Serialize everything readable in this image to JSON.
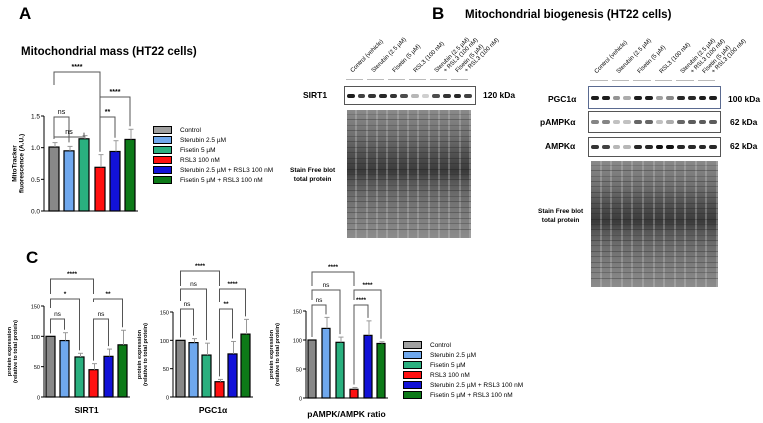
{
  "colors": {
    "control": "#808080",
    "sterubin": "#6fa8ee",
    "fisetin": "#2ab07f",
    "rsl3": "#ff1010",
    "sterubin_rsl3": "#1212d8",
    "fisetin_rsl3": "#0d7a18"
  },
  "panel_a": {
    "letter": "A",
    "title": "Mitochondrial mass (HT22 cells)"
  },
  "panel_b": {
    "letter": "B",
    "title": "Mitochondrial biogenesis (HT22 cells)",
    "lanes": [
      "Control (vehicle)",
      "Sterubin (2.5 µM)",
      "Fisetin (5 µM)",
      "RSL3 (100 nM)",
      "Sterubin (2.5 µM)",
      "+ RSL3 (100 nM)",
      "Fisetin (5 µM)",
      "+ RSL3 (100 nM)"
    ],
    "left_blot": {
      "protein": "SIRT1",
      "kda": "120 kDa",
      "stain_label_1": "Stain Free blot",
      "stain_label_2": "total protein"
    },
    "right_blot": {
      "rows": [
        {
          "protein": "PGC1α",
          "kda": "100 kDa"
        },
        {
          "protein": "pAMPKα",
          "kda": "62 kDa"
        },
        {
          "protein": "AMPKα",
          "kda": "62 kDa"
        }
      ],
      "stain_label_1": "Stain Free blot",
      "stain_label_2": "total protein"
    }
  },
  "panel_c": {
    "letter": "C"
  },
  "legend": [
    {
      "label": "Control",
      "color": "#a0a0a0"
    },
    {
      "label": "Sterubin 2.5 µM",
      "color": "#6fa8ee"
    },
    {
      "label": "Fisetin 5 µM",
      "color": "#2ab07f"
    },
    {
      "label": "RSL3 100 nM",
      "color": "#ff1010"
    },
    {
      "label": "Sterubin 2.5 µM + RSL3 100 nM",
      "color": "#1212d8"
    },
    {
      "label": "Fisetin 5 µM + RSL3 100 nM",
      "color": "#0d7a18"
    }
  ],
  "chart_data": [
    {
      "type": "bar",
      "title": "Mitochondrial mass (HT22 cells)",
      "xlabel": "",
      "ylabel": "MitoTracker fluorescence (A.U.)",
      "ylim": [
        0,
        1.5
      ],
      "yticks": [
        "0.0",
        "0.5",
        "1.0",
        "1.5"
      ],
      "categories": [
        "Control",
        "Sterubin 2.5 µM",
        "Fisetin 5 µM",
        "RSL3 100 nM",
        "Sterubin 2.5 µM + RSL3 100 nM",
        "Fisetin 5 µM + RSL3 100 nM"
      ],
      "values": [
        1.01,
        0.95,
        1.14,
        0.69,
        0.94,
        1.13
      ],
      "errors": [
        0.07,
        0.07,
        0.05,
        0.2,
        0.17,
        0.16
      ],
      "significance": [
        {
          "from": 0,
          "to": 1,
          "label": "ns"
        },
        {
          "from": 0,
          "to": 2,
          "label": "ns"
        },
        {
          "from": 0,
          "to": 3,
          "label": "****"
        },
        {
          "from": 3,
          "to": 4,
          "label": "**"
        },
        {
          "from": 3,
          "to": 5,
          "label": "****"
        }
      ]
    },
    {
      "type": "bar",
      "title": "",
      "xlabel": "SIRT1",
      "ylabel": "protein expression (relative to total protein)",
      "ylim": [
        0,
        150
      ],
      "yticks": [
        "0",
        "50",
        "100",
        "150"
      ],
      "categories": [
        "Control",
        "Sterubin 2.5 µM",
        "Fisetin 5 µM",
        "RSL3 100 nM",
        "Sterubin 2.5 µM + RSL3 100 nM",
        "Fisetin 5 µM + RSL3 100 nM"
      ],
      "values": [
        100,
        93,
        66,
        45,
        67,
        86
      ],
      "errors": [
        0,
        13,
        6,
        10,
        12,
        24
      ],
      "significance": [
        {
          "from": 0,
          "to": 1,
          "label": "ns"
        },
        {
          "from": 0,
          "to": 2,
          "label": "*"
        },
        {
          "from": 0,
          "to": 3,
          "label": "****"
        },
        {
          "from": 3,
          "to": 4,
          "label": "ns"
        },
        {
          "from": 3,
          "to": 5,
          "label": "**"
        }
      ]
    },
    {
      "type": "bar",
      "title": "",
      "xlabel": "PGC1α",
      "ylabel": "protein expression (relative to total protein)",
      "ylim": [
        0,
        150
      ],
      "yticks": [
        "0",
        "50",
        "100",
        "150"
      ],
      "categories": [
        "Control",
        "Sterubin 2.5 µM",
        "Fisetin 5 µM",
        "RSL3 100 nM",
        "Sterubin 2.5 µM + RSL3 100 nM",
        "Fisetin 5 µM + RSL3 100 nM"
      ],
      "values": [
        100,
        96,
        74,
        27,
        76,
        111
      ],
      "errors": [
        0,
        7,
        21,
        4,
        22,
        26
      ],
      "significance": [
        {
          "from": 0,
          "to": 1,
          "label": "ns"
        },
        {
          "from": 0,
          "to": 2,
          "label": "ns"
        },
        {
          "from": 0,
          "to": 3,
          "label": "****"
        },
        {
          "from": 3,
          "to": 4,
          "label": "**"
        },
        {
          "from": 3,
          "to": 5,
          "label": "****"
        }
      ]
    },
    {
      "type": "bar",
      "title": "",
      "xlabel": "pAMPK/AMPK ratio",
      "ylabel": "protein expression (relative to total protein)",
      "ylim": [
        0,
        150
      ],
      "yticks": [
        "0",
        "50",
        "100",
        "150"
      ],
      "categories": [
        "Control",
        "Sterubin 2.5 µM",
        "Fisetin 5 µM",
        "RSL3 100 nM",
        "Sterubin 2.5 µM + RSL3 100 nM",
        "Fisetin 5 µM + RSL3 100 nM"
      ],
      "values": [
        100,
        120,
        96,
        15,
        108,
        94
      ],
      "errors": [
        0,
        19,
        9,
        3,
        25,
        3
      ],
      "significance": [
        {
          "from": 0,
          "to": 1,
          "label": "ns"
        },
        {
          "from": 0,
          "to": 2,
          "label": "ns"
        },
        {
          "from": 0,
          "to": 3,
          "label": "****"
        },
        {
          "from": 3,
          "to": 4,
          "label": "****"
        },
        {
          "from": 3,
          "to": 5,
          "label": "****"
        }
      ]
    }
  ]
}
